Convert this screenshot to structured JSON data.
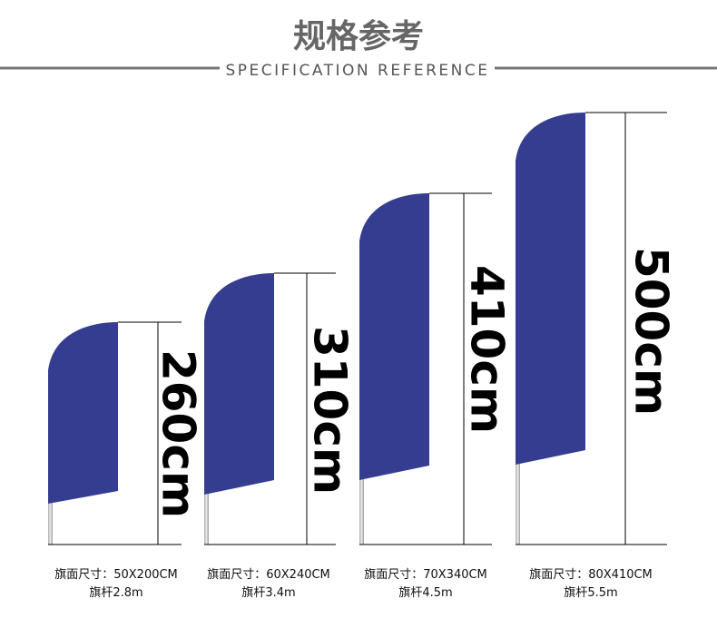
{
  "header": {
    "title": "规格参考",
    "subtitle": "SPECIFICATION REFERENCE"
  },
  "items": [
    {
      "height_label": "260cm",
      "flag_size": "旗面尺寸：50X200CM",
      "pole": "旗杆2.8m"
    },
    {
      "height_label": "310cm",
      "flag_size": "旗面尺寸：60X240CM",
      "pole": "旗杆3.4m"
    },
    {
      "height_label": "410cm",
      "flag_size": "旗面尺寸：70X340CM",
      "pole": "旗杆4.5m"
    },
    {
      "height_label": "500cm",
      "flag_size": "旗面尺寸：80X410CM",
      "pole": "旗杆5.5m"
    }
  ]
}
